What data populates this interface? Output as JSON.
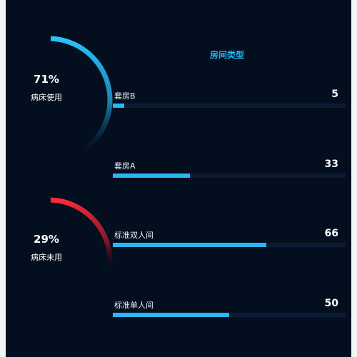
{
  "gauges": [
    {
      "percent": "71%",
      "label": "病床使用",
      "fraction": 0.71,
      "color": "#29b6f6"
    },
    {
      "percent": "29%",
      "label": "病床未用",
      "fraction": 0.29,
      "color": "#ff2a3a"
    }
  ],
  "chart_data": {
    "type": "bar",
    "orientation": "horizontal",
    "title": "房间类型",
    "categories": [
      "套房B",
      "套房A",
      "标准双人间",
      "标准单人间"
    ],
    "values": [
      5,
      33,
      66,
      50
    ],
    "xlim": [
      0,
      100
    ],
    "grid": false,
    "bar_color": "#29b6f6",
    "track_color": "#0b1b36"
  },
  "colors": {
    "background": "#030e1e",
    "title": "#26b8f0"
  }
}
